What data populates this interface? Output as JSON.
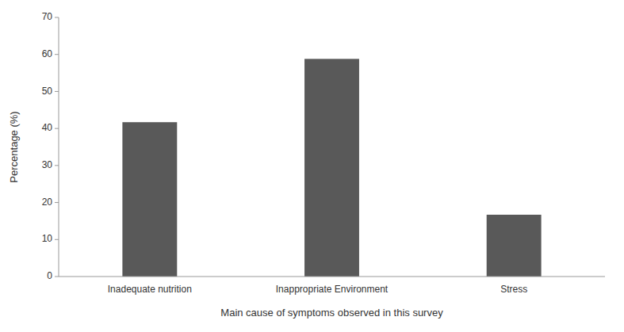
{
  "chart_data": {
    "type": "bar",
    "categories": [
      "Inadequate nutrition",
      "Inappropriate Environment",
      "Stress"
    ],
    "values": [
      41.7,
      58.8,
      16.7
    ],
    "color": "#595959",
    "xlabel": "Main cause of symptoms observed in this survey",
    "ylabel": "Percentage (%)",
    "ylim": [
      0,
      70
    ],
    "yticks": [
      0,
      10,
      20,
      30,
      40,
      50,
      60,
      70
    ],
    "grid": false
  }
}
